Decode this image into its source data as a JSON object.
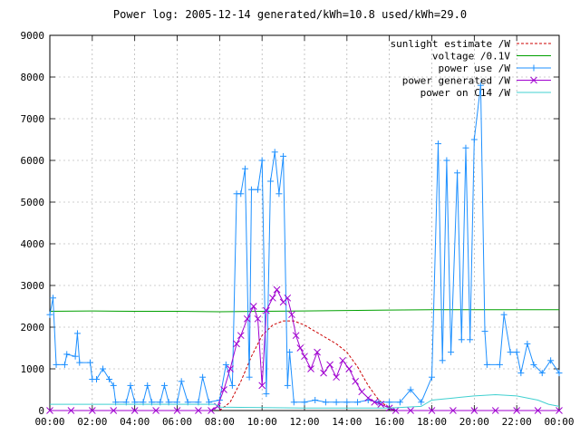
{
  "chart_data": {
    "type": "line",
    "title": "Power log: 2005-12-14 generated/kWh=10.8 used/kWh=29.0",
    "xlabel": "",
    "ylabel": "",
    "x_ticks": [
      "00:00",
      "02:00",
      "04:00",
      "06:00",
      "08:00",
      "10:00",
      "12:00",
      "14:00",
      "16:00",
      "18:00",
      "20:00",
      "22:00",
      "00:00"
    ],
    "y_ticks": [
      "0",
      "1000",
      "2000",
      "3000",
      "4000",
      "5000",
      "6000",
      "7000",
      "8000",
      "9000"
    ],
    "xlim_hours": [
      0,
      24
    ],
    "ylim": [
      0,
      9000
    ],
    "grid": true,
    "legend_placement": "top-right",
    "series": [
      {
        "name": "sunlight estimate /W",
        "color": "#cc0000",
        "style": "dashed-line",
        "points": [
          [
            8.0,
            0
          ],
          [
            8.5,
            200
          ],
          [
            9.0,
            700
          ],
          [
            9.5,
            1300
          ],
          [
            10.0,
            1800
          ],
          [
            10.5,
            2050
          ],
          [
            11.0,
            2150
          ],
          [
            11.5,
            2150
          ],
          [
            12.0,
            2050
          ],
          [
            12.5,
            1900
          ],
          [
            13.0,
            1750
          ],
          [
            13.5,
            1600
          ],
          [
            14.0,
            1400
          ],
          [
            14.5,
            1050
          ],
          [
            15.0,
            600
          ],
          [
            15.5,
            250
          ],
          [
            16.0,
            50
          ],
          [
            16.3,
            0
          ]
        ]
      },
      {
        "name": "voltage /0.1V",
        "color": "#00a000",
        "style": "line",
        "points": [
          [
            0,
            2380
          ],
          [
            2,
            2390
          ],
          [
            4,
            2380
          ],
          [
            6,
            2380
          ],
          [
            8,
            2370
          ],
          [
            10,
            2380
          ],
          [
            12,
            2390
          ],
          [
            14,
            2400
          ],
          [
            16,
            2410
          ],
          [
            18,
            2420
          ],
          [
            20,
            2420
          ],
          [
            22,
            2420
          ],
          [
            24,
            2420
          ]
        ]
      },
      {
        "name": "power use /W",
        "color": "#1e90ff",
        "style": "line-plus",
        "points": [
          [
            0,
            2300
          ],
          [
            0.15,
            2700
          ],
          [
            0.3,
            1100
          ],
          [
            0.7,
            1100
          ],
          [
            0.8,
            1350
          ],
          [
            1.2,
            1300
          ],
          [
            1.3,
            1850
          ],
          [
            1.4,
            1150
          ],
          [
            1.9,
            1150
          ],
          [
            2.0,
            750
          ],
          [
            2.2,
            750
          ],
          [
            2.5,
            1000
          ],
          [
            2.8,
            750
          ],
          [
            3.0,
            600
          ],
          [
            3.1,
            200
          ],
          [
            3.6,
            200
          ],
          [
            3.8,
            600
          ],
          [
            4.0,
            200
          ],
          [
            4.4,
            200
          ],
          [
            4.6,
            600
          ],
          [
            4.8,
            200
          ],
          [
            5.2,
            200
          ],
          [
            5.4,
            600
          ],
          [
            5.6,
            200
          ],
          [
            6.0,
            200
          ],
          [
            6.2,
            700
          ],
          [
            6.5,
            200
          ],
          [
            7.0,
            200
          ],
          [
            7.2,
            800
          ],
          [
            7.5,
            200
          ],
          [
            8.0,
            250
          ],
          [
            8.3,
            1100
          ],
          [
            8.6,
            600
          ],
          [
            8.8,
            5200
          ],
          [
            9.0,
            5200
          ],
          [
            9.2,
            5800
          ],
          [
            9.4,
            800
          ],
          [
            9.5,
            5300
          ],
          [
            9.8,
            5300
          ],
          [
            10.0,
            6000
          ],
          [
            10.2,
            400
          ],
          [
            10.4,
            5500
          ],
          [
            10.6,
            6200
          ],
          [
            10.8,
            5200
          ],
          [
            11.0,
            6100
          ],
          [
            11.2,
            600
          ],
          [
            11.3,
            1400
          ],
          [
            11.5,
            200
          ],
          [
            12.0,
            200
          ],
          [
            12.5,
            250
          ],
          [
            13.0,
            200
          ],
          [
            13.5,
            200
          ],
          [
            14.0,
            200
          ],
          [
            14.5,
            200
          ],
          [
            15.0,
            250
          ],
          [
            15.5,
            200
          ],
          [
            16.0,
            200
          ],
          [
            16.5,
            200
          ],
          [
            17.0,
            500
          ],
          [
            17.5,
            200
          ],
          [
            18.0,
            800
          ],
          [
            18.3,
            6400
          ],
          [
            18.5,
            1200
          ],
          [
            18.7,
            6000
          ],
          [
            18.9,
            1400
          ],
          [
            19.2,
            5700
          ],
          [
            19.4,
            1700
          ],
          [
            19.6,
            6300
          ],
          [
            19.8,
            1700
          ],
          [
            20.0,
            6500
          ],
          [
            20.3,
            7800
          ],
          [
            20.5,
            1900
          ],
          [
            20.6,
            1100
          ],
          [
            21.2,
            1100
          ],
          [
            21.4,
            2300
          ],
          [
            21.7,
            1400
          ],
          [
            22.0,
            1400
          ],
          [
            22.2,
            900
          ],
          [
            22.5,
            1600
          ],
          [
            22.8,
            1100
          ],
          [
            23.2,
            900
          ],
          [
            23.6,
            1200
          ],
          [
            24,
            900
          ]
        ]
      },
      {
        "name": "power generated /W",
        "color": "#a000d0",
        "style": "line-x",
        "points": [
          [
            0,
            0
          ],
          [
            1,
            0
          ],
          [
            2,
            0
          ],
          [
            3,
            0
          ],
          [
            4,
            0
          ],
          [
            5,
            0
          ],
          [
            6,
            0
          ],
          [
            7,
            0
          ],
          [
            7.6,
            0
          ],
          [
            7.9,
            100
          ],
          [
            8.2,
            500
          ],
          [
            8.5,
            1000
          ],
          [
            8.8,
            1600
          ],
          [
            9.0,
            1800
          ],
          [
            9.3,
            2200
          ],
          [
            9.6,
            2500
          ],
          [
            9.8,
            2200
          ],
          [
            10.0,
            600
          ],
          [
            10.2,
            2400
          ],
          [
            10.5,
            2700
          ],
          [
            10.7,
            2900
          ],
          [
            11.0,
            2600
          ],
          [
            11.2,
            2700
          ],
          [
            11.4,
            2300
          ],
          [
            11.6,
            1800
          ],
          [
            11.8,
            1500
          ],
          [
            12.0,
            1300
          ],
          [
            12.3,
            1000
          ],
          [
            12.6,
            1400
          ],
          [
            12.9,
            900
          ],
          [
            13.2,
            1100
          ],
          [
            13.5,
            800
          ],
          [
            13.8,
            1200
          ],
          [
            14.1,
            1000
          ],
          [
            14.4,
            700
          ],
          [
            14.7,
            450
          ],
          [
            15.0,
            300
          ],
          [
            15.3,
            200
          ],
          [
            15.6,
            150
          ],
          [
            16.0,
            60
          ],
          [
            16.3,
            0
          ],
          [
            17,
            0
          ],
          [
            18,
            0
          ],
          [
            19,
            0
          ],
          [
            20,
            0
          ],
          [
            21,
            0
          ],
          [
            22,
            0
          ],
          [
            23,
            0
          ],
          [
            24,
            0
          ]
        ]
      },
      {
        "name": "power on C14 /W",
        "color": "#40d0d0",
        "style": "line",
        "points": [
          [
            0,
            150
          ],
          [
            2,
            150
          ],
          [
            4,
            150
          ],
          [
            6,
            150
          ],
          [
            7.8,
            150
          ],
          [
            8.0,
            80
          ],
          [
            12,
            60
          ],
          [
            16,
            60
          ],
          [
            17.5,
            100
          ],
          [
            18.0,
            250
          ],
          [
            19.0,
            300
          ],
          [
            20.0,
            350
          ],
          [
            21.0,
            380
          ],
          [
            22.0,
            350
          ],
          [
            23.0,
            250
          ],
          [
            23.5,
            150
          ],
          [
            24,
            100
          ]
        ]
      }
    ]
  }
}
